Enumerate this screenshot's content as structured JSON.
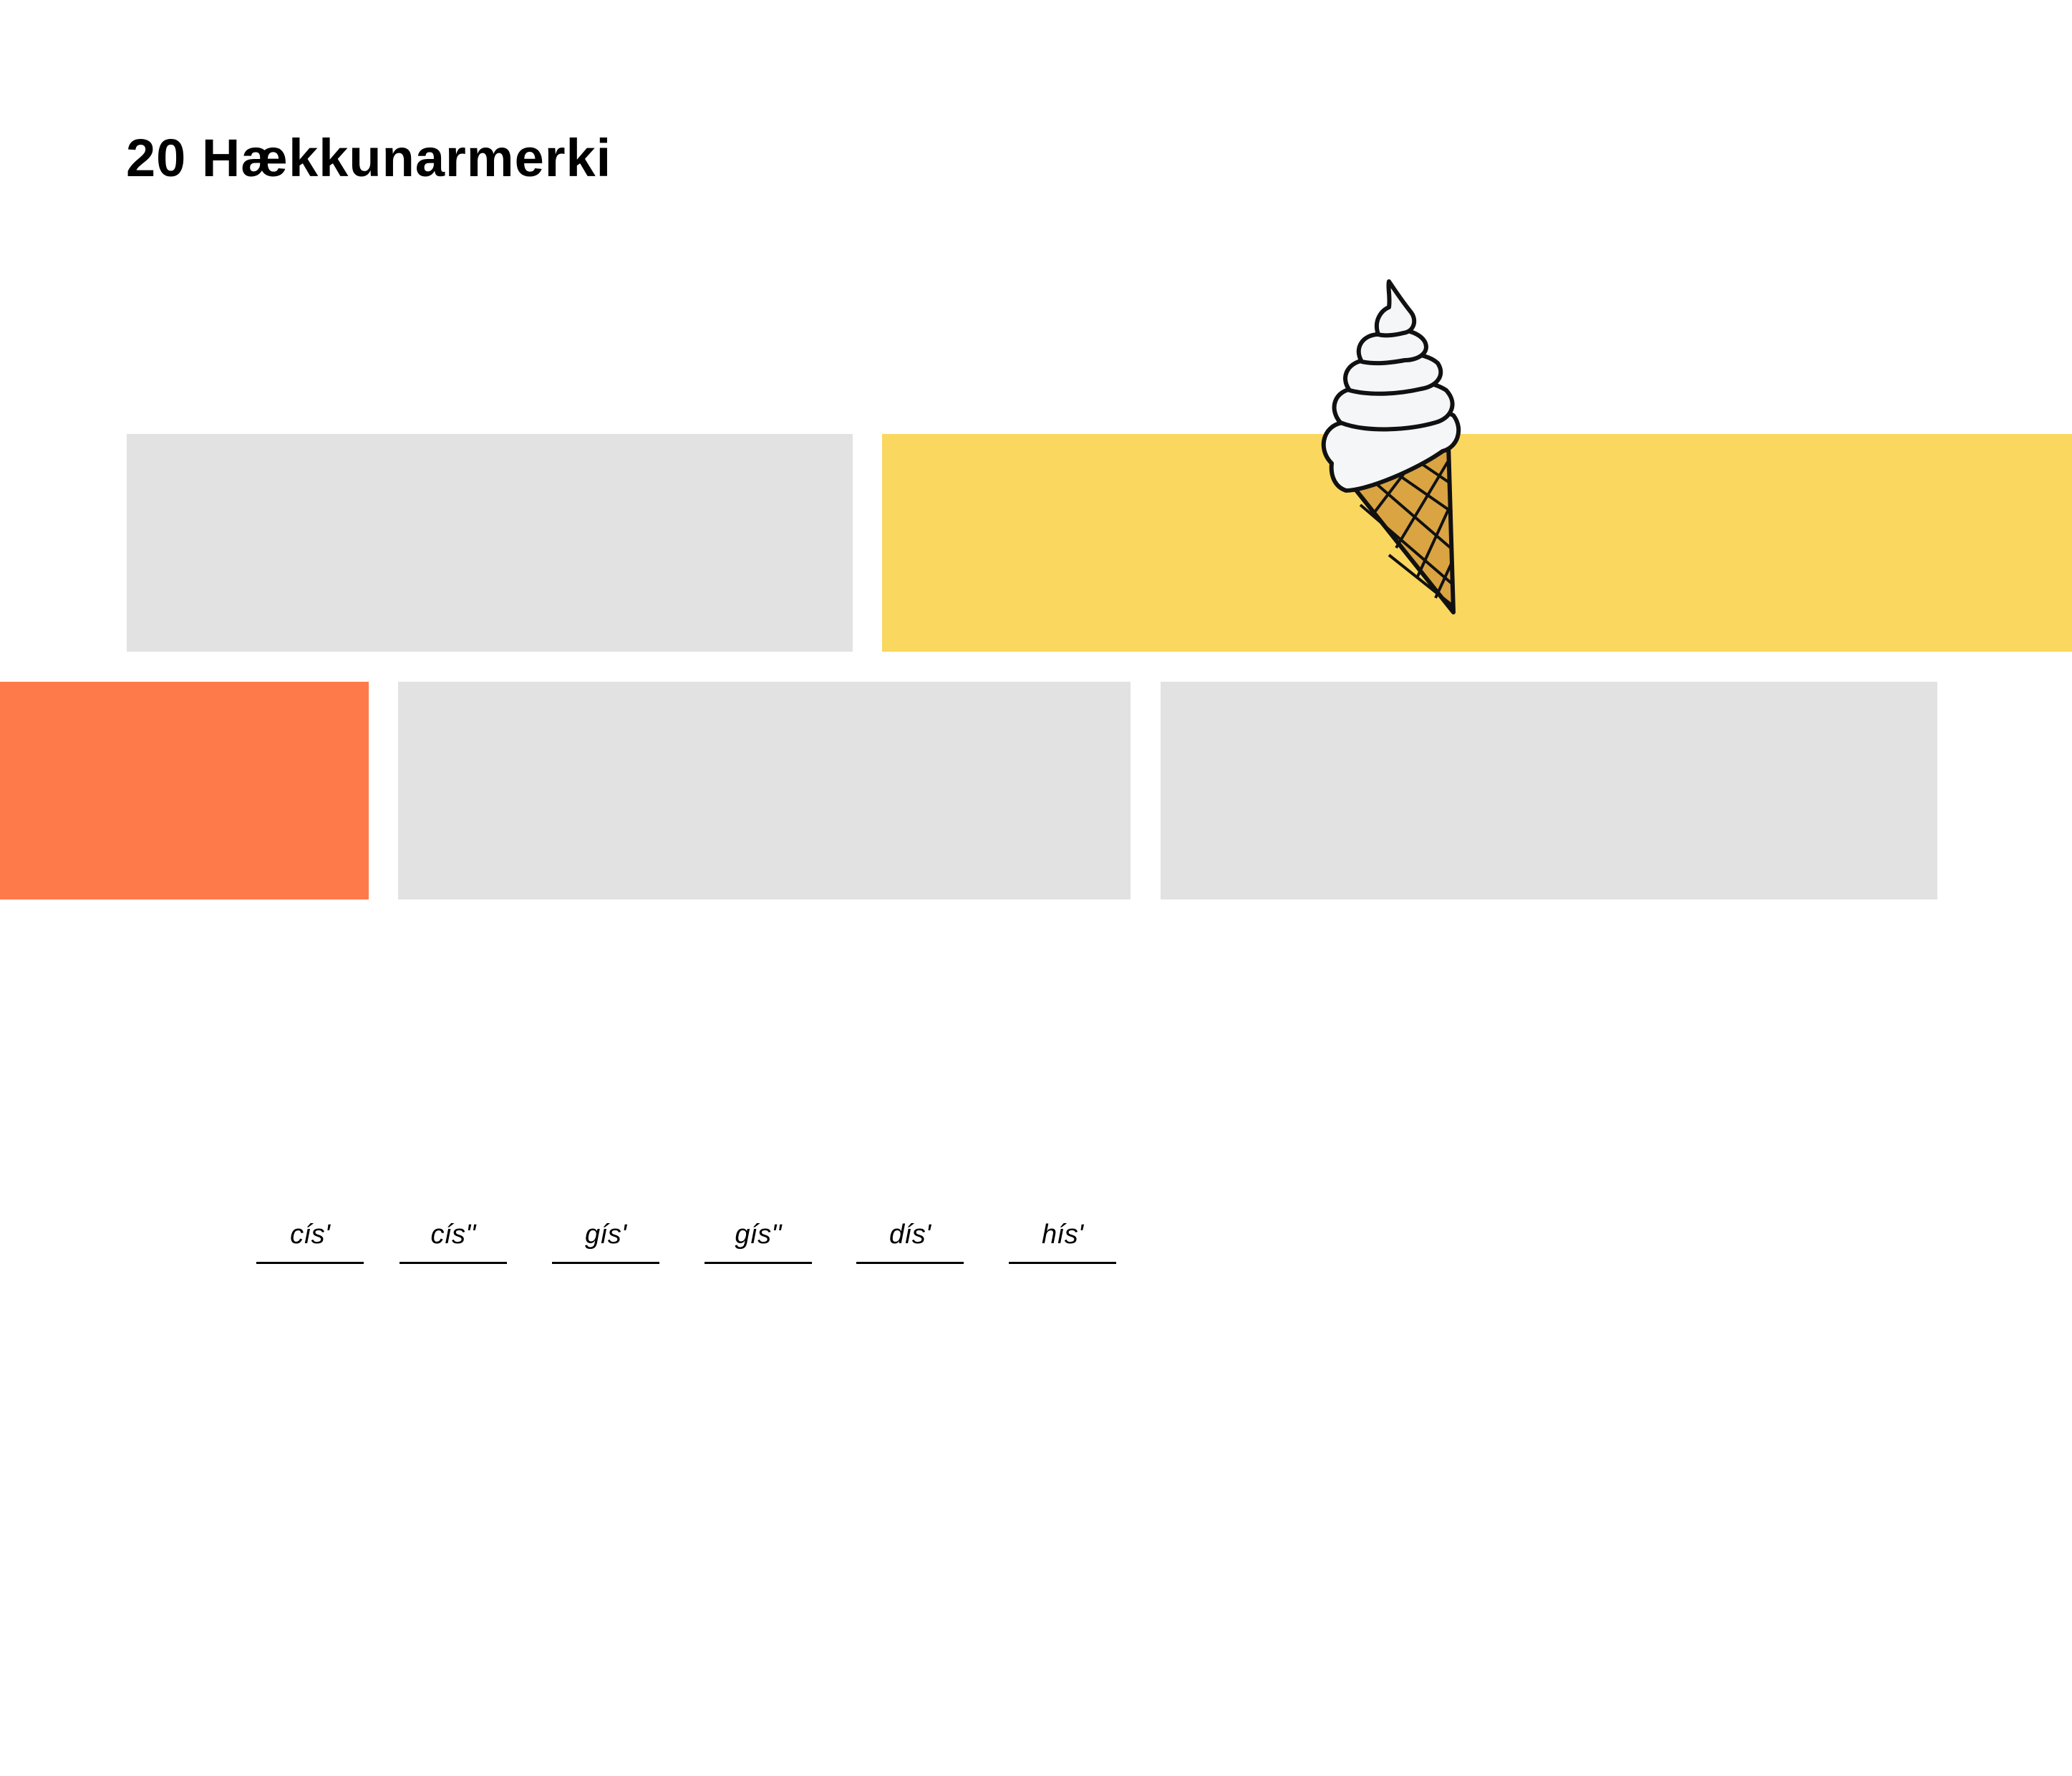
{
  "page": {
    "title": "20 Hækkunarmerki"
  },
  "colors": {
    "background": "#ffffff",
    "gray_block": "#e2e2e2",
    "yellow_block": "#fad75f",
    "orange_block": "#ff7a4a",
    "cone": "#d9a441",
    "cream": "#f4f6f8",
    "outline": "#111111"
  },
  "illustration": {
    "icon": "ice-cream-cone-icon"
  },
  "answers": [
    {
      "label": "cís'"
    },
    {
      "label": "cís''"
    },
    {
      "label": "gís'"
    },
    {
      "label": "gís''"
    },
    {
      "label": "dís'"
    },
    {
      "label": "hís'"
    }
  ]
}
